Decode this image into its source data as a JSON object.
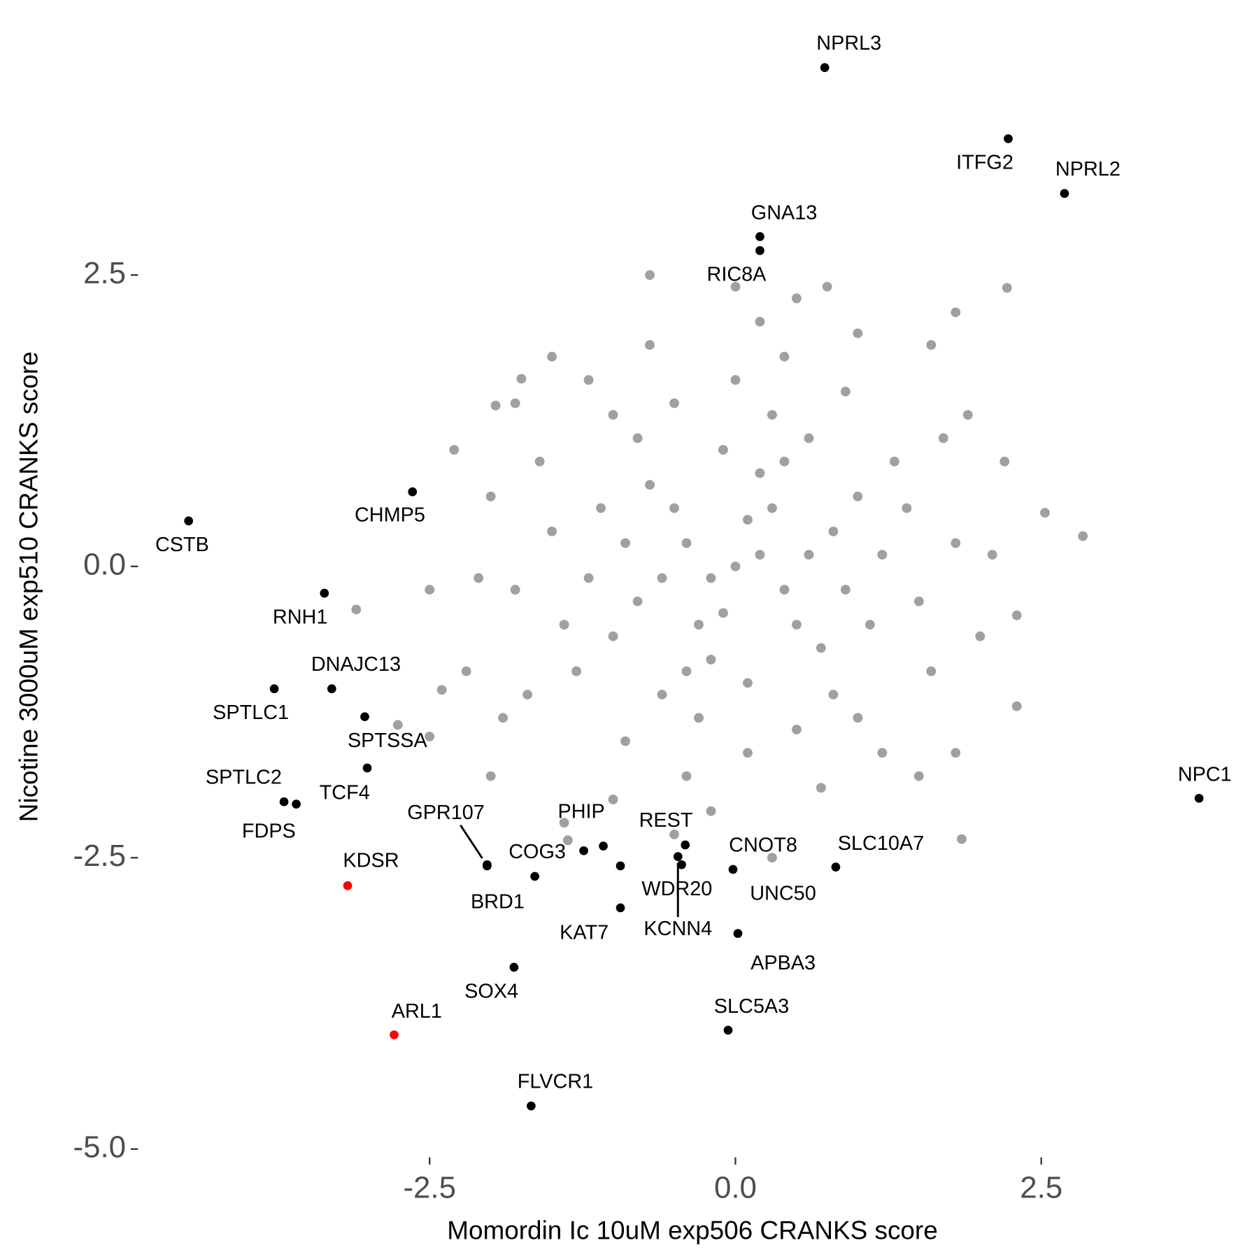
{
  "chart_data": {
    "type": "scatter",
    "x_label": "Momordin Ic 10uM exp506 CRANKS score",
    "y_label": "Nicotine 3000uM exp510 CRANKS score",
    "xlim": [
      -4.6,
      3.95
    ],
    "ylim": [
      -5.05,
      4.5
    ],
    "xticks": [
      -2.5,
      {
        "value": 0,
        "label": "0.0"
      },
      2.5
    ],
    "yticks": [
      {
        "value": -5,
        "label": "-5.0"
      },
      -2.5,
      {
        "value": 0,
        "label": "0.0"
      },
      2.5
    ],
    "series": [
      {
        "color": "#a0a0a0",
        "x": [
          0,
          0.2,
          -0.2,
          0.4,
          -0.4,
          0.1,
          -0.1,
          0.3,
          -0.3,
          0.6,
          -0.6,
          0.5,
          -0.5,
          0.8,
          -0.8,
          0.7,
          -0.7,
          0.2,
          -0.2,
          0.9,
          -0.9,
          0.4,
          -0.4,
          1.0,
          -1.0,
          0.1,
          -0.1,
          1.1,
          -1.1,
          0.6,
          -0.6,
          1.2,
          -1.2,
          0.8,
          -0.8,
          0.3,
          -0.3,
          1.3,
          -1.3,
          1.0,
          -1.0,
          0.5,
          -0.5,
          1.5,
          -1.5,
          1.4,
          -1.4,
          0.0,
          0.1,
          1.6,
          -1.6,
          0.9,
          -0.9,
          1.8,
          -1.8,
          1.2,
          -1.2,
          0.4,
          -0.4,
          1.7,
          -1.7,
          2.0,
          -2.0,
          0.7,
          -0.7,
          1.9,
          -1.9,
          2.1,
          -2.1,
          0.2,
          -0.2,
          1.5,
          -1.5,
          2.2,
          -2.2,
          1.0,
          -1.0,
          2.3,
          -2.3,
          0.5,
          -0.5,
          1.6,
          -1.4,
          1.8,
          -1.8,
          0.3,
          0.0,
          2.84,
          2.53,
          2.22,
          1.8,
          -1.75,
          -1.96,
          -3.1,
          -2.4,
          -2.76,
          -2.5,
          1.85,
          2.3,
          -1.37,
          -0.7,
          0.75,
          -2.5,
          -2.0
        ],
        "values": [
          0,
          0.1,
          -0.1,
          -0.2,
          0.2,
          0.4,
          -0.4,
          0.5,
          -0.5,
          0.1,
          -0.1,
          -0.5,
          0.5,
          0.3,
          -0.3,
          -0.7,
          0.7,
          0.8,
          -0.8,
          -0.2,
          0.2,
          0.9,
          -0.9,
          0.6,
          -0.6,
          -1.0,
          1.0,
          -0.5,
          0.5,
          1.1,
          -1.1,
          0.1,
          -0.1,
          -1.1,
          1.1,
          1.3,
          -1.3,
          0.9,
          -0.9,
          -1.3,
          1.3,
          -1.4,
          1.4,
          -0.3,
          0.3,
          0.5,
          -0.5,
          1.6,
          -1.6,
          -0.9,
          0.9,
          1.5,
          -1.5,
          0.2,
          -0.2,
          -1.6,
          1.6,
          1.8,
          -1.8,
          1.1,
          -1.1,
          -0.6,
          0.6,
          -1.9,
          1.9,
          1.3,
          -1.3,
          0.1,
          -0.1,
          2.1,
          -2.1,
          -1.8,
          1.8,
          0.9,
          -0.9,
          2.0,
          -2.0,
          -1.2,
          1.0,
          2.3,
          -2.3,
          1.9,
          -2.2,
          -1.6,
          1.4,
          -2.5,
          2.4,
          0.26,
          0.46,
          2.39,
          2.18,
          1.61,
          1.38,
          -0.37,
          -1.06,
          -1.36,
          -1.46,
          -2.34,
          -0.42,
          -2.35,
          2.5,
          2.4,
          -0.2,
          -1.8
        ]
      },
      {
        "color": "#000000",
        "labels": [
          "NPRL3",
          "ITFG2",
          "NPRL2",
          "GNA13",
          "RIC8A",
          "CHMP5",
          "CSTB",
          "RNH1",
          "DNAJC13",
          "SPTLC1",
          "SPTSSA",
          "TCF4",
          "SPTLC2",
          "FDPS",
          "GPR107",
          "BRD1",
          "COG3",
          "PHIP",
          null,
          "WDR20",
          "KAT7",
          "KCNN4",
          "CNOT8",
          "REST",
          "UNC50",
          "SLC10A7",
          "APBA3",
          "SLC5A3",
          "SOX4",
          "FLVCR1",
          "NPC1"
        ],
        "x": [
          0.73,
          2.23,
          2.69,
          0.2,
          0.2,
          -2.64,
          -4.47,
          -3.36,
          -3.3,
          -3.77,
          -3.03,
          -3.01,
          -3.69,
          -3.59,
          -2.03,
          -2.03,
          -1.64,
          -1.24,
          -1.08,
          -0.94,
          -0.94,
          -0.47,
          -0.44,
          -0.41,
          -0.02,
          0.82,
          0.02,
          -0.06,
          -1.81,
          -1.67,
          3.79
        ],
        "values": [
          4.28,
          3.67,
          3.2,
          2.83,
          2.71,
          0.64,
          0.39,
          -0.23,
          -1.05,
          -1.05,
          -1.29,
          -1.73,
          -2.02,
          -2.04,
          -2.56,
          -2.57,
          -2.66,
          -2.44,
          -2.4,
          -2.57,
          -2.93,
          -2.49,
          -2.56,
          -2.39,
          -2.6,
          -2.58,
          -3.15,
          -3.98,
          -3.44,
          -4.63,
          -1.99
        ]
      },
      {
        "color": "#ff0000",
        "labels": [
          "KDSR",
          "ARL1"
        ],
        "x": [
          -3.17,
          -2.79
        ],
        "values": [
          -2.74,
          -4.02
        ]
      }
    ]
  }
}
